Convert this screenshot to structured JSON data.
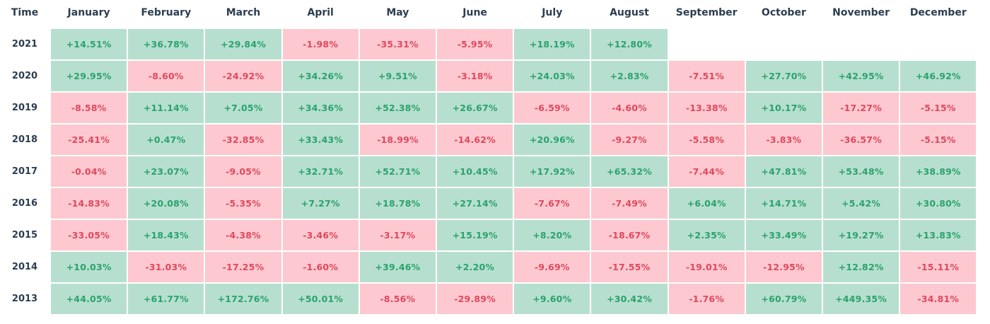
{
  "chart_data": {
    "type": "heatmap",
    "corner_label": "Time",
    "columns": [
      "January",
      "February",
      "March",
      "April",
      "May",
      "June",
      "July",
      "August",
      "September",
      "October",
      "November",
      "December"
    ],
    "rows": [
      {
        "year": "2021",
        "values": [
          "+14.51%",
          "+36.78%",
          "+29.84%",
          "-1.98%",
          "-35.31%",
          "-5.95%",
          "+18.19%",
          "+12.80%",
          null,
          null,
          null,
          null
        ]
      },
      {
        "year": "2020",
        "values": [
          "+29.95%",
          "-8.60%",
          "-24.92%",
          "+34.26%",
          "+9.51%",
          "-3.18%",
          "+24.03%",
          "+2.83%",
          "-7.51%",
          "+27.70%",
          "+42.95%",
          "+46.92%"
        ]
      },
      {
        "year": "2019",
        "values": [
          "-8.58%",
          "+11.14%",
          "+7.05%",
          "+34.36%",
          "+52.38%",
          "+26.67%",
          "-6.59%",
          "-4.60%",
          "-13.38%",
          "+10.17%",
          "-17.27%",
          "-5.15%"
        ]
      },
      {
        "year": "2018",
        "values": [
          "-25.41%",
          "+0.47%",
          "-32.85%",
          "+33.43%",
          "-18.99%",
          "-14.62%",
          "+20.96%",
          "-9.27%",
          "-5.58%",
          "-3.83%",
          "-36.57%",
          "-5.15%"
        ]
      },
      {
        "year": "2017",
        "values": [
          "-0.04%",
          "+23.07%",
          "-9.05%",
          "+32.71%",
          "+52.71%",
          "+10.45%",
          "+17.92%",
          "+65.32%",
          "-7.44%",
          "+47.81%",
          "+53.48%",
          "+38.89%"
        ]
      },
      {
        "year": "2016",
        "values": [
          "-14.83%",
          "+20.08%",
          "-5.35%",
          "+7.27%",
          "+18.78%",
          "+27.14%",
          "-7.67%",
          "-7.49%",
          "+6.04%",
          "+14.71%",
          "+5.42%",
          "+30.80%"
        ]
      },
      {
        "year": "2015",
        "values": [
          "-33.05%",
          "+18.43%",
          "-4.38%",
          "-3.46%",
          "-3.17%",
          "+15.19%",
          "+8.20%",
          "-18.67%",
          "+2.35%",
          "+33.49%",
          "+19.27%",
          "+13.83%"
        ]
      },
      {
        "year": "2014",
        "values": [
          "+10.03%",
          "-31.03%",
          "-17.25%",
          "-1.60%",
          "+39.46%",
          "+2.20%",
          "-9.69%",
          "-17.55%",
          "-19.01%",
          "-12.95%",
          "+12.82%",
          "-15.11%"
        ]
      },
      {
        "year": "2013",
        "values": [
          "+44.05%",
          "+61.77%",
          "+172.76%",
          "+50.01%",
          "-8.56%",
          "-29.89%",
          "+9.60%",
          "+30.42%",
          "-1.76%",
          "+60.79%",
          "+449.35%",
          "-34.81%"
        ]
      }
    ]
  },
  "colors": {
    "positive_bg": "#b7dfd0",
    "positive_text": "#2aa36b",
    "negative_bg": "#fdc8cf",
    "negative_text": "#e0485f"
  }
}
